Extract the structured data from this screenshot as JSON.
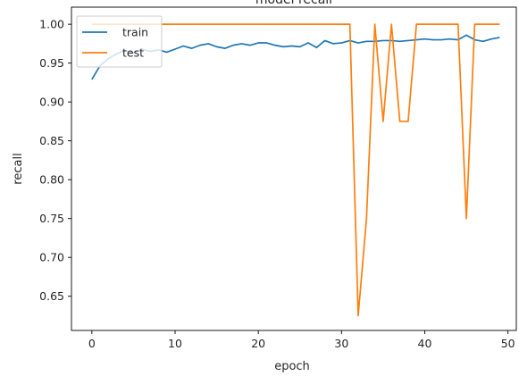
{
  "chart_data": {
    "type": "line",
    "title": "model recall",
    "xlabel": "epoch",
    "ylabel": "recall",
    "xlim": [
      -2.45,
      51
    ],
    "ylim": [
      0.606,
      1.022
    ],
    "x_ticks": [
      0,
      10,
      20,
      30,
      40,
      50
    ],
    "x_tick_labels": [
      "0",
      "10",
      "20",
      "30",
      "40",
      "50"
    ],
    "y_ticks": [
      0.65,
      0.7,
      0.75,
      0.8,
      0.85,
      0.9,
      0.95,
      1.0
    ],
    "y_tick_labels": [
      "0.65",
      "0.70",
      "0.75",
      "0.80",
      "0.85",
      "0.90",
      "0.95",
      "1.00"
    ],
    "grid": false,
    "legend_position": "top-left",
    "x": [
      0,
      1,
      2,
      3,
      4,
      5,
      6,
      7,
      8,
      9,
      10,
      11,
      12,
      13,
      14,
      15,
      16,
      17,
      18,
      19,
      20,
      21,
      22,
      23,
      24,
      25,
      26,
      27,
      28,
      29,
      30,
      31,
      32,
      33,
      34,
      35,
      36,
      37,
      38,
      39,
      40,
      41,
      42,
      43,
      44,
      45,
      46,
      47,
      48,
      49
    ],
    "series": [
      {
        "name": "train",
        "color": "#1f77b4",
        "values": [
          0.929,
          0.947,
          0.956,
          0.962,
          0.966,
          0.963,
          0.968,
          0.965,
          0.967,
          0.964,
          0.968,
          0.972,
          0.969,
          0.973,
          0.975,
          0.971,
          0.969,
          0.973,
          0.975,
          0.973,
          0.976,
          0.976,
          0.973,
          0.971,
          0.972,
          0.971,
          0.976,
          0.97,
          0.979,
          0.975,
          0.976,
          0.979,
          0.976,
          0.978,
          0.978,
          0.979,
          0.979,
          0.978,
          0.979,
          0.98,
          0.981,
          0.98,
          0.98,
          0.981,
          0.98,
          0.986,
          0.98,
          0.978,
          0.981,
          0.983
        ]
      },
      {
        "name": "test",
        "color": "#ff7f0e",
        "values": [
          1.0,
          1.0,
          1.0,
          1.0,
          1.0,
          1.0,
          1.0,
          1.0,
          1.0,
          1.0,
          1.0,
          1.0,
          1.0,
          1.0,
          1.0,
          1.0,
          1.0,
          1.0,
          1.0,
          1.0,
          1.0,
          1.0,
          1.0,
          1.0,
          1.0,
          1.0,
          1.0,
          1.0,
          1.0,
          1.0,
          1.0,
          1.0,
          0.625,
          0.75,
          1.0,
          0.875,
          1.0,
          0.875,
          0.875,
          1.0,
          1.0,
          1.0,
          1.0,
          1.0,
          1.0,
          0.75,
          1.0,
          1.0,
          1.0,
          1.0
        ]
      }
    ]
  }
}
